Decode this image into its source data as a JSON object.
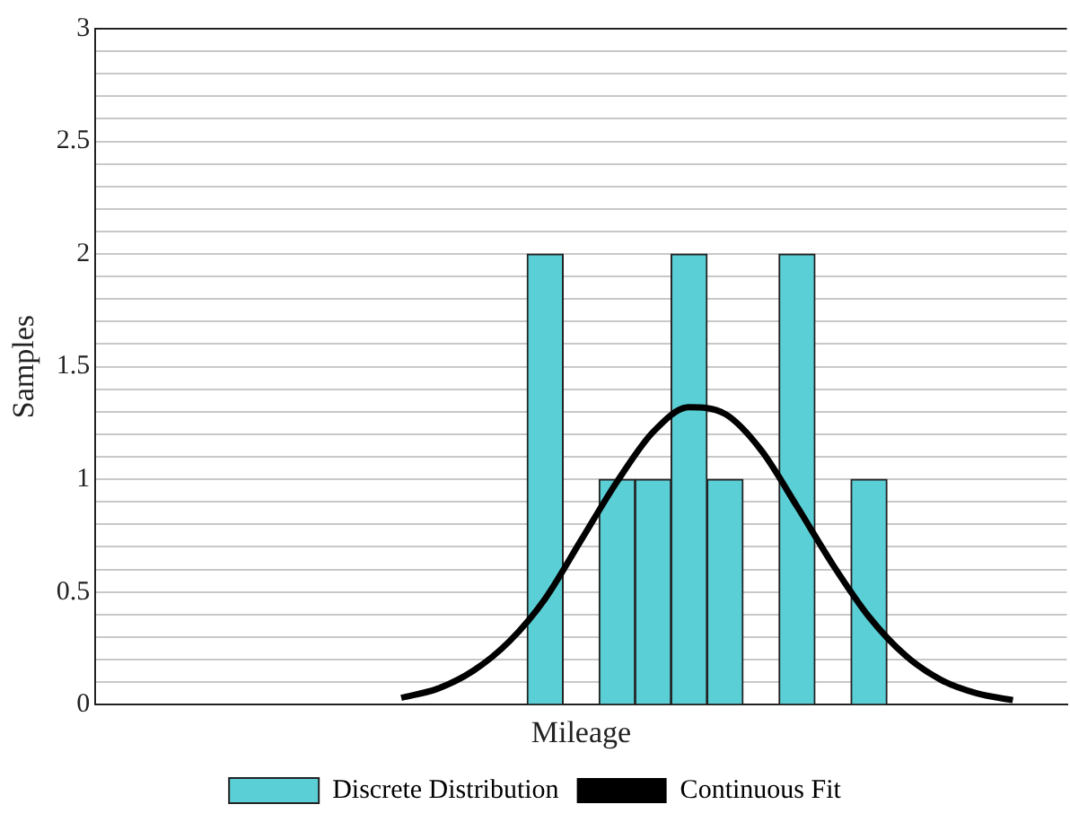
{
  "chart_data": {
    "type": "bar",
    "xlabel": "Mileage",
    "ylabel": "Samples",
    "categories": [
      null,
      null,
      null,
      null,
      null,
      null,
      null,
      null,
      null,
      null,
      null,
      null,
      null,
      null,
      null,
      null,
      null,
      null,
      null,
      null,
      null,
      null,
      null,
      null,
      null,
      null,
      null
    ],
    "series": [
      {
        "name": "Discrete Distribution",
        "color": "#5bcfd6",
        "values": [
          0,
          0,
          0,
          0,
          0,
          0,
          0,
          0,
          0,
          0,
          0,
          0,
          2,
          0,
          1,
          1,
          2,
          1,
          0,
          2,
          0,
          1,
          0,
          0,
          0,
          0,
          0
        ]
      },
      {
        "name": "Continuous Fit",
        "type": "line",
        "color": "#000000",
        "values": [
          null,
          null,
          null,
          null,
          null,
          null,
          null,
          null,
          0.03,
          0.07,
          0.15,
          0.28,
          0.47,
          0.73,
          0.99,
          1.21,
          1.32,
          1.29,
          1.13,
          0.88,
          0.62,
          0.39,
          0.22,
          0.11,
          0.05,
          0.02,
          null
        ]
      }
    ],
    "ylim": [
      0,
      3
    ],
    "yticks": [
      0,
      {
        "value": 0.1,
        "label": null
      },
      {
        "value": 0.2,
        "label": null
      },
      {
        "value": 0.3,
        "label": null
      },
      {
        "value": 0.4,
        "label": null
      },
      {
        "value": 0.5,
        "label": "0.5"
      },
      {
        "value": 0.6,
        "label": null
      },
      {
        "value": 0.7,
        "label": null
      },
      {
        "value": 0.8,
        "label": null
      },
      {
        "value": 0.9,
        "label": null
      },
      1,
      {
        "value": 1.1,
        "label": null
      },
      {
        "value": 1.2,
        "label": null
      },
      {
        "value": 1.3,
        "label": null
      },
      {
        "value": 1.4,
        "label": null
      },
      {
        "value": 1.5,
        "label": "1.5"
      },
      {
        "value": 1.6,
        "label": null
      },
      {
        "value": 1.7,
        "label": null
      },
      {
        "value": 1.8,
        "label": null
      },
      {
        "value": 1.9,
        "label": null
      },
      2,
      {
        "value": 2.1,
        "label": null
      },
      {
        "value": 2.2,
        "label": null
      },
      {
        "value": 2.3,
        "label": null
      },
      {
        "value": 2.4,
        "label": null
      },
      {
        "value": 2.5,
        "label": "2.5"
      },
      {
        "value": 2.6,
        "label": null
      },
      {
        "value": 2.7,
        "label": null
      },
      {
        "value": 2.8,
        "label": null
      },
      {
        "value": 2.9,
        "label": null
      },
      3
    ],
    "grid": "y",
    "legend": "bottom",
    "marker": "none",
    "tick_labels": "y"
  }
}
